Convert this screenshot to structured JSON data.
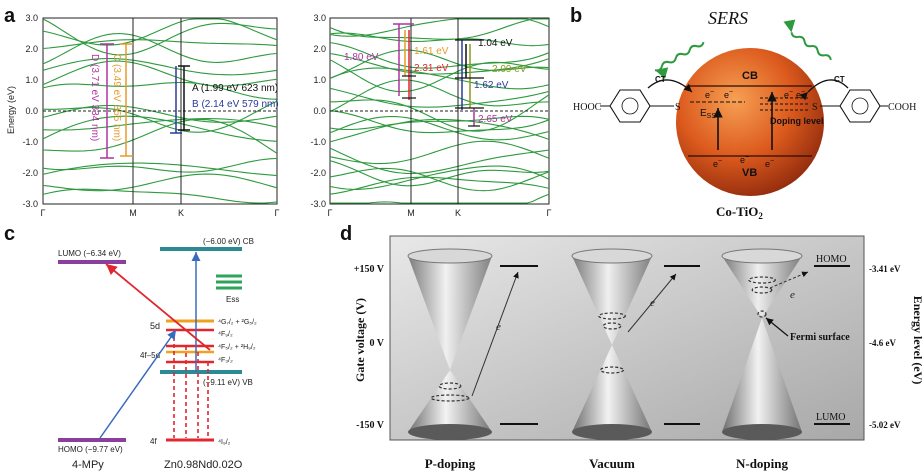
{
  "panels": {
    "a": {
      "letter": "a",
      "ylabel": "Energy (eV)",
      "yticks": [
        "3.0",
        "2.0",
        "1.0",
        "0.0",
        "-1.0",
        "-2.0",
        "-3.0"
      ],
      "left_xticks": [
        "Γ",
        "M",
        "K",
        "Γ"
      ],
      "right_xticks": [
        "Γ",
        "M",
        "K",
        "Γ"
      ],
      "left_annotations": {
        "A": "A (1.99 eV 623 nm)",
        "B": "B (2.14 eV 579 nm)",
        "C": "C (3.49 eV 355 nm)",
        "D": "D (3.71 eV 334 nm)"
      },
      "right_annotations": [
        "1.80 eV",
        "1.61 eV",
        "2.31 eV",
        "1.04 eV",
        "1.62 eV",
        "2.09 eV",
        "2.65 eV"
      ]
    },
    "b": {
      "letter": "b",
      "sers": "SERS",
      "ct_left": "CT",
      "ct_right": "CT",
      "cb": "CB",
      "vb": "VB",
      "ess": "E",
      "ess_sub": "SS",
      "doping": "Doping level",
      "particle": "Co-TiO",
      "particle_sub": "2",
      "left_group": "HOOC",
      "right_group": "COOH",
      "s": "S",
      "electron": "e",
      "electron_sup": "−"
    },
    "c": {
      "letter": "c",
      "lumo": "LUMO (−6.34 eV)",
      "cb": "(−6.00 eV) CB",
      "ess": "Ess",
      "fived": "5d",
      "level_g": "⁴G₇/₂ + ²G₅/₂",
      "level_f9": "⁴F₉/₂",
      "level_f5": "⁴F₅/₂ + ²H₉/₂",
      "level_f3": "⁴F₃/₂",
      "fourf5d": "4f–5d",
      "vb": "(−9.11 eV) VB",
      "homo": "HOMO (−9.77 eV)",
      "fourf": "4f",
      "level_i": "⁴I₉/₂",
      "mol": "4-MPy",
      "semi": "Zn0.98Nd0.02O"
    },
    "d": {
      "letter": "d",
      "ylabel": "Gate voltage (V)",
      "yticks": [
        "+150 V",
        "0 V",
        "-150 V"
      ],
      "y2label": "Energy level (eV)",
      "y2ticks": [
        "-3.41 eV",
        "-4.6 eV",
        "-5.02 eV"
      ],
      "homo": "HOMO",
      "lumo": "LUMO",
      "fermi": "Fermi surface",
      "electron": "e",
      "cases": [
        "P-doping",
        "Vacuum",
        "N-doping"
      ]
    }
  },
  "colors": {
    "band": "#2e9a3e",
    "A_black": "#111111",
    "B_blue": "#2b3a9a",
    "C_orange": "#e59a2a",
    "D_magenta": "#b0339e",
    "red": "#e0262e",
    "olive": "#8a9a1a",
    "sphere": "#d8571c",
    "lumo_purple": "#8a3e9e",
    "cb_teal": "#2b8a96",
    "ess_green": "#2fa35a",
    "orange_level": "#f0a21e"
  }
}
